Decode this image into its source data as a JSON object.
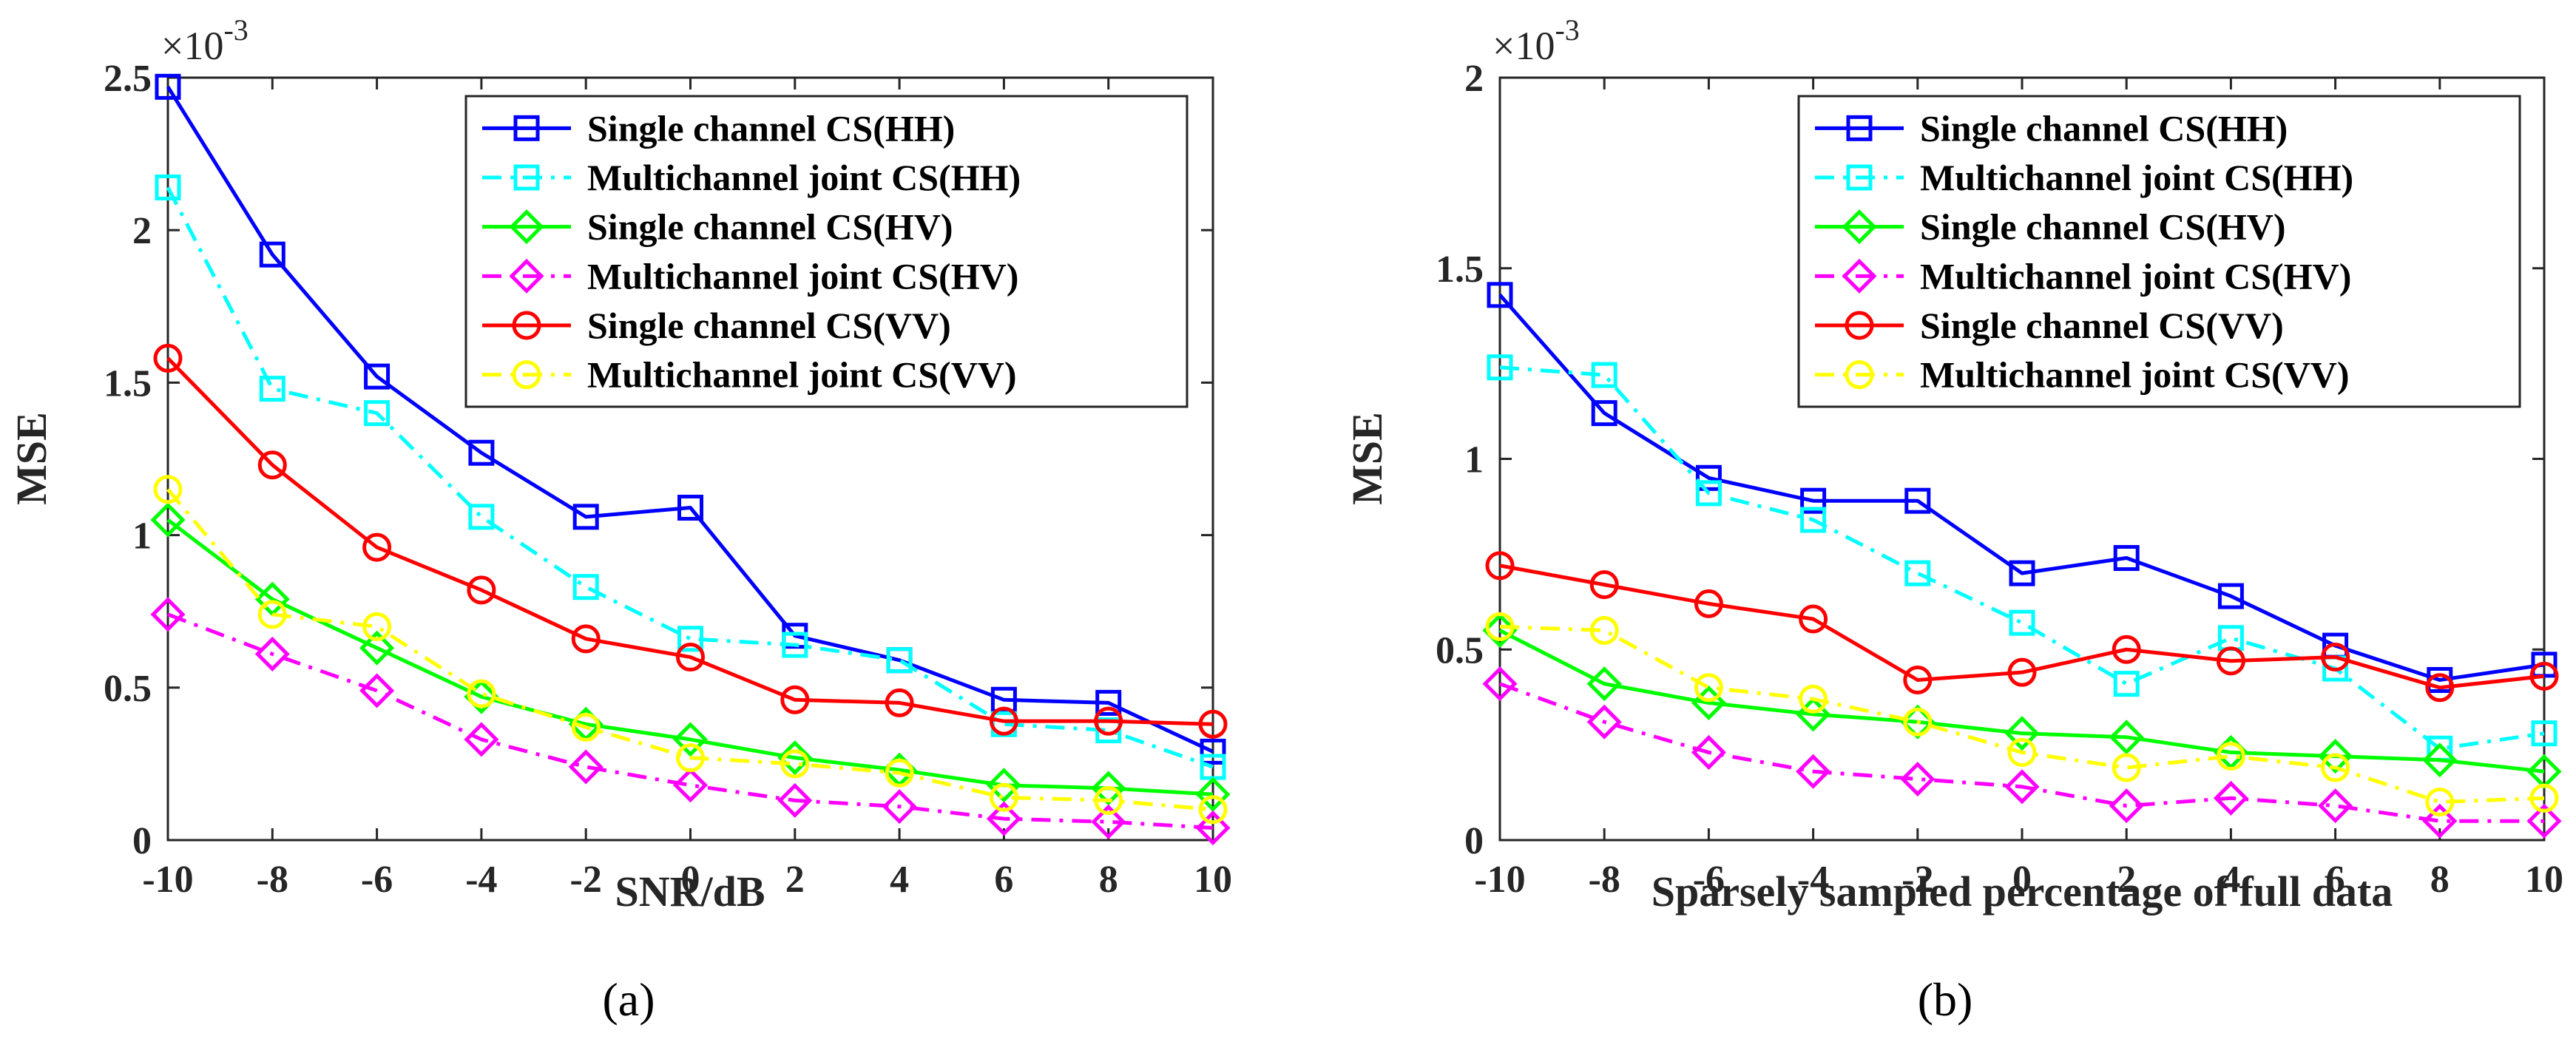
{
  "chart_data": [
    {
      "type": "line",
      "panel": "a",
      "caption": "(a)",
      "title": "",
      "xlabel": "SNR/dB",
      "ylabel": "MSE",
      "exponent_label": "×10",
      "exponent_power": "-3",
      "x": [
        -10,
        -8,
        -6,
        -4,
        -2,
        0,
        2,
        4,
        6,
        8,
        10
      ],
      "xlim": [
        -10,
        10
      ],
      "ylim": [
        0,
        2.5
      ],
      "xticks": [
        "-10",
        "-8",
        "-6",
        "-4",
        "-2",
        "0",
        "2",
        "4",
        "6",
        "8",
        "10"
      ],
      "yticks": [
        0,
        0.5,
        1,
        1.5,
        2,
        2.5
      ],
      "ytick_labels": [
        "0",
        "0.5",
        "1",
        "1.5",
        "2",
        "2.5"
      ],
      "grid": false,
      "legend_position": "top-right",
      "series": [
        {
          "name": "Single channel CS(HH)",
          "color": "#0000ff",
          "linestyle": "solid",
          "marker": "square",
          "values": [
            2.47,
            1.92,
            1.52,
            1.27,
            1.06,
            1.09,
            0.67,
            0.59,
            0.46,
            0.45,
            0.29
          ]
        },
        {
          "name": "Multichannel joint CS(HH)",
          "color": "#00ffff",
          "linestyle": "dashdot",
          "marker": "square",
          "values": [
            2.14,
            1.48,
            1.4,
            1.06,
            0.83,
            0.66,
            0.64,
            0.59,
            0.38,
            0.36,
            0.24
          ]
        },
        {
          "name": "Single channel CS(HV)",
          "color": "#00ff00",
          "linestyle": "solid",
          "marker": "diamond",
          "values": [
            1.05,
            0.79,
            0.63,
            0.47,
            0.38,
            0.33,
            0.27,
            0.23,
            0.18,
            0.17,
            0.15
          ]
        },
        {
          "name": "Multichannel joint CS(HV)",
          "color": "#ff00ff",
          "linestyle": "dashdot",
          "marker": "diamond",
          "values": [
            0.74,
            0.61,
            0.49,
            0.33,
            0.24,
            0.18,
            0.13,
            0.11,
            0.07,
            0.06,
            0.04
          ]
        },
        {
          "name": "Single channel CS(VV)",
          "color": "#ff0000",
          "linestyle": "solid",
          "marker": "circle",
          "values": [
            1.58,
            1.23,
            0.96,
            0.82,
            0.66,
            0.6,
            0.46,
            0.45,
            0.39,
            0.39,
            0.38
          ]
        },
        {
          "name": "Multichannel joint CS(VV)",
          "color": "#ffff00",
          "linestyle": "dashdot",
          "marker": "circle",
          "values": [
            1.15,
            0.74,
            0.7,
            0.48,
            0.37,
            0.27,
            0.25,
            0.22,
            0.14,
            0.13,
            0.1
          ]
        }
      ]
    },
    {
      "type": "line",
      "panel": "b",
      "caption": "(b)",
      "title": "",
      "xlabel": "Sparsely sampled percentage of full data",
      "ylabel": "MSE",
      "exponent_label": "×10",
      "exponent_power": "-3",
      "x": [
        -10,
        -8,
        -6,
        -4,
        -2,
        0,
        2,
        4,
        6,
        8,
        10
      ],
      "xlim": [
        -10,
        10
      ],
      "ylim": [
        0,
        2
      ],
      "xticks": [
        "-10",
        "-8",
        "-6",
        "-4",
        "-2",
        "0",
        "2",
        "4",
        "6",
        "8",
        "10"
      ],
      "yticks": [
        0,
        0.5,
        1,
        1.5,
        2
      ],
      "ytick_labels": [
        "0",
        "0.5",
        "1",
        "1.5",
        "2"
      ],
      "grid": false,
      "legend_position": "top-right",
      "series": [
        {
          "name": "Single channel CS(HH)",
          "color": "#0000ff",
          "linestyle": "solid",
          "marker": "square",
          "values": [
            1.43,
            1.12,
            0.95,
            0.89,
            0.89,
            0.7,
            0.74,
            0.64,
            0.51,
            0.42,
            0.46
          ]
        },
        {
          "name": "Multichannel joint CS(HH)",
          "color": "#00ffff",
          "linestyle": "dashdot",
          "marker": "square",
          "values": [
            1.24,
            1.22,
            0.91,
            0.84,
            0.7,
            0.57,
            0.41,
            0.53,
            0.45,
            0.24,
            0.28
          ]
        },
        {
          "name": "Single channel CS(HV)",
          "color": "#00ff00",
          "linestyle": "solid",
          "marker": "diamond",
          "values": [
            0.55,
            0.41,
            0.36,
            0.33,
            0.31,
            0.28,
            0.27,
            0.23,
            0.22,
            0.21,
            0.18
          ]
        },
        {
          "name": "Multichannel joint CS(HV)",
          "color": "#ff00ff",
          "linestyle": "dashdot",
          "marker": "diamond",
          "values": [
            0.41,
            0.31,
            0.23,
            0.18,
            0.16,
            0.14,
            0.09,
            0.11,
            0.09,
            0.05,
            0.05
          ]
        },
        {
          "name": "Single channel CS(VV)",
          "color": "#ff0000",
          "linestyle": "solid",
          "marker": "circle",
          "values": [
            0.72,
            0.67,
            0.62,
            0.58,
            0.42,
            0.44,
            0.5,
            0.47,
            0.48,
            0.4,
            0.43
          ]
        },
        {
          "name": "Multichannel joint CS(VV)",
          "color": "#ffff00",
          "linestyle": "dashdot",
          "marker": "circle",
          "values": [
            0.56,
            0.55,
            0.4,
            0.37,
            0.31,
            0.23,
            0.19,
            0.22,
            0.19,
            0.1,
            0.11
          ]
        }
      ]
    }
  ]
}
